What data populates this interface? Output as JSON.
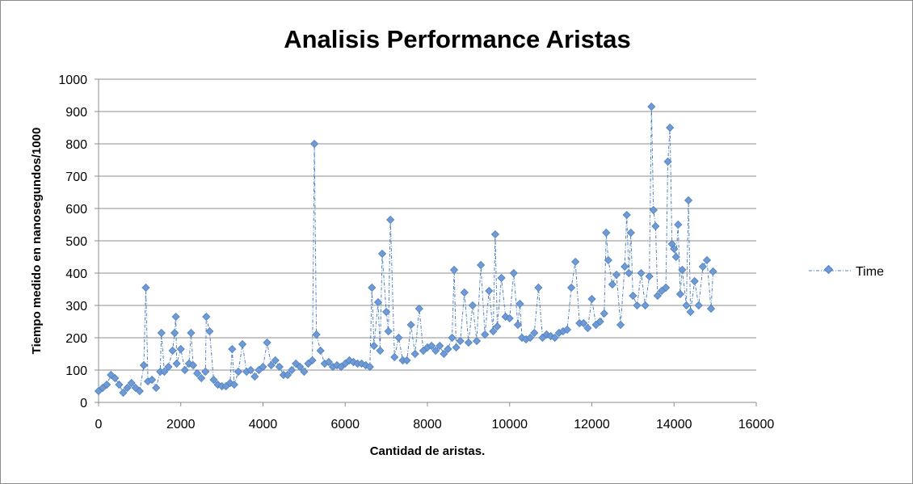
{
  "chart_data": {
    "type": "scatter",
    "title": "Analisis Performance Aristas",
    "xlabel": "Cantidad de aristas.",
    "ylabel": "Tiempo medido en nanosegundos/1000",
    "xlim": [
      0,
      16000
    ],
    "ylim": [
      0,
      1000
    ],
    "xticks": [
      "0",
      "2000",
      "4000",
      "6000",
      "8000",
      "10000",
      "12000",
      "14000",
      "16000"
    ],
    "yticks": [
      "0",
      "100",
      "200",
      "300",
      "400",
      "500",
      "600",
      "700",
      "800",
      "900",
      "1000"
    ],
    "grid": "horizontal",
    "legend_position": "right",
    "colors": {
      "series": "#4f81bd",
      "marker_fill": "#6f9ad6",
      "grid": "#8c8c8c"
    },
    "series": [
      {
        "name": "Time",
        "points": [
          [
            0,
            35
          ],
          [
            100,
            45
          ],
          [
            200,
            55
          ],
          [
            300,
            85
          ],
          [
            400,
            75
          ],
          [
            500,
            55
          ],
          [
            600,
            30
          ],
          [
            700,
            45
          ],
          [
            800,
            60
          ],
          [
            900,
            45
          ],
          [
            1000,
            35
          ],
          [
            1100,
            115
          ],
          [
            1150,
            355
          ],
          [
            1200,
            65
          ],
          [
            1300,
            70
          ],
          [
            1400,
            45
          ],
          [
            1500,
            95
          ],
          [
            1530,
            215
          ],
          [
            1600,
            95
          ],
          [
            1700,
            110
          ],
          [
            1800,
            160
          ],
          [
            1850,
            215
          ],
          [
            1880,
            265
          ],
          [
            1900,
            120
          ],
          [
            2000,
            165
          ],
          [
            2100,
            100
          ],
          [
            2200,
            120
          ],
          [
            2250,
            215
          ],
          [
            2300,
            115
          ],
          [
            2400,
            90
          ],
          [
            2500,
            75
          ],
          [
            2600,
            95
          ],
          [
            2620,
            265
          ],
          [
            2700,
            220
          ],
          [
            2800,
            70
          ],
          [
            2900,
            55
          ],
          [
            3000,
            50
          ],
          [
            3100,
            50
          ],
          [
            3200,
            60
          ],
          [
            3250,
            165
          ],
          [
            3300,
            55
          ],
          [
            3400,
            95
          ],
          [
            3500,
            180
          ],
          [
            3600,
            95
          ],
          [
            3700,
            100
          ],
          [
            3800,
            80
          ],
          [
            3900,
            100
          ],
          [
            4000,
            110
          ],
          [
            4100,
            185
          ],
          [
            4200,
            115
          ],
          [
            4300,
            130
          ],
          [
            4400,
            110
          ],
          [
            4500,
            85
          ],
          [
            4600,
            85
          ],
          [
            4700,
            100
          ],
          [
            4800,
            120
          ],
          [
            4900,
            110
          ],
          [
            5000,
            95
          ],
          [
            5100,
            120
          ],
          [
            5200,
            130
          ],
          [
            5250,
            800
          ],
          [
            5300,
            210
          ],
          [
            5400,
            160
          ],
          [
            5500,
            120
          ],
          [
            5600,
            125
          ],
          [
            5700,
            110
          ],
          [
            5800,
            115
          ],
          [
            5900,
            110
          ],
          [
            6000,
            120
          ],
          [
            6100,
            130
          ],
          [
            6200,
            125
          ],
          [
            6300,
            120
          ],
          [
            6400,
            120
          ],
          [
            6500,
            115
          ],
          [
            6600,
            110
          ],
          [
            6650,
            355
          ],
          [
            6700,
            175
          ],
          [
            6800,
            310
          ],
          [
            6850,
            160
          ],
          [
            6900,
            460
          ],
          [
            7000,
            280
          ],
          [
            7050,
            220
          ],
          [
            7100,
            565
          ],
          [
            7200,
            140
          ],
          [
            7300,
            200
          ],
          [
            7400,
            130
          ],
          [
            7500,
            130
          ],
          [
            7600,
            240
          ],
          [
            7700,
            150
          ],
          [
            7800,
            290
          ],
          [
            7900,
            160
          ],
          [
            8000,
            170
          ],
          [
            8100,
            175
          ],
          [
            8200,
            160
          ],
          [
            8300,
            175
          ],
          [
            8400,
            150
          ],
          [
            8500,
            165
          ],
          [
            8600,
            200
          ],
          [
            8650,
            410
          ],
          [
            8700,
            170
          ],
          [
            8800,
            190
          ],
          [
            8900,
            340
          ],
          [
            9000,
            185
          ],
          [
            9100,
            300
          ],
          [
            9200,
            190
          ],
          [
            9300,
            425
          ],
          [
            9400,
            210
          ],
          [
            9500,
            345
          ],
          [
            9600,
            220
          ],
          [
            9650,
            520
          ],
          [
            9700,
            235
          ],
          [
            9800,
            385
          ],
          [
            9900,
            265
          ],
          [
            10000,
            260
          ],
          [
            10100,
            400
          ],
          [
            10200,
            240
          ],
          [
            10250,
            305
          ],
          [
            10300,
            200
          ],
          [
            10400,
            195
          ],
          [
            10500,
            200
          ],
          [
            10600,
            215
          ],
          [
            10700,
            355
          ],
          [
            10800,
            200
          ],
          [
            10900,
            210
          ],
          [
            11000,
            205
          ],
          [
            11100,
            200
          ],
          [
            11200,
            215
          ],
          [
            11300,
            220
          ],
          [
            11400,
            225
          ],
          [
            11500,
            355
          ],
          [
            11600,
            435
          ],
          [
            11700,
            245
          ],
          [
            11800,
            245
          ],
          [
            11900,
            230
          ],
          [
            12000,
            320
          ],
          [
            12100,
            240
          ],
          [
            12200,
            250
          ],
          [
            12300,
            275
          ],
          [
            12350,
            525
          ],
          [
            12400,
            440
          ],
          [
            12500,
            365
          ],
          [
            12600,
            395
          ],
          [
            12700,
            240
          ],
          [
            12800,
            420
          ],
          [
            12850,
            580
          ],
          [
            12900,
            400
          ],
          [
            12950,
            525
          ],
          [
            13000,
            330
          ],
          [
            13100,
            300
          ],
          [
            13200,
            400
          ],
          [
            13300,
            300
          ],
          [
            13400,
            390
          ],
          [
            13450,
            915
          ],
          [
            13500,
            595
          ],
          [
            13550,
            545
          ],
          [
            13600,
            330
          ],
          [
            13700,
            345
          ],
          [
            13800,
            355
          ],
          [
            13850,
            745
          ],
          [
            13900,
            850
          ],
          [
            13950,
            490
          ],
          [
            14000,
            475
          ],
          [
            14050,
            450
          ],
          [
            14100,
            550
          ],
          [
            14150,
            335
          ],
          [
            14200,
            410
          ],
          [
            14300,
            300
          ],
          [
            14350,
            625
          ],
          [
            14400,
            280
          ],
          [
            14500,
            375
          ],
          [
            14600,
            300
          ],
          [
            14700,
            420
          ],
          [
            14800,
            440
          ],
          [
            14900,
            290
          ],
          [
            14950,
            405
          ]
        ]
      }
    ]
  }
}
